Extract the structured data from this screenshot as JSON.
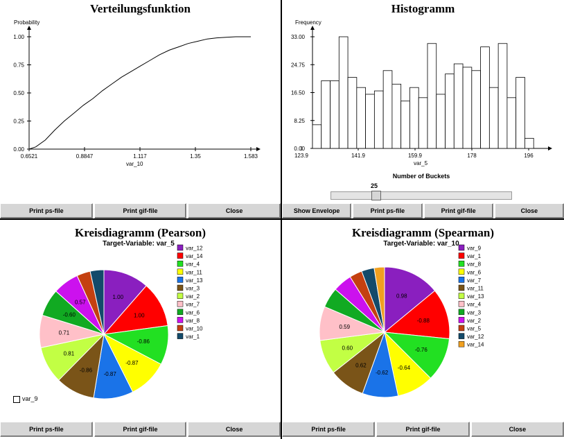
{
  "cdf_panel": {
    "title": "Verteilungsfunktion",
    "buttons": [
      "Print ps-file",
      "Print gif-file",
      "Close"
    ]
  },
  "hist_panel": {
    "title": "Histogramm",
    "slider_label": "Number of Buckets",
    "slider_value": "25",
    "buttons": [
      "Show Envelope",
      "Print ps-file",
      "Print gif-file",
      "Close"
    ]
  },
  "pearson_panel": {
    "title": "Kreisdiagramm (Pearson)",
    "subtitle": "Target-Variable: var_5",
    "checkbox_label": "var_9",
    "buttons": [
      "Print ps-file",
      "Print gif-file",
      "Close"
    ]
  },
  "spearman_panel": {
    "title": "Kreisdiagramm (Spearman)",
    "subtitle": "Target-Variable: var_10",
    "buttons": [
      "Print ps-file",
      "Print gif-file",
      "Close"
    ]
  },
  "chart_data": [
    {
      "type": "line",
      "ylabel": "Probability",
      "xlabel": "var_10",
      "xticks": [
        "0.6521",
        "0.8847",
        "1.117",
        "1.35",
        "1.583"
      ],
      "yticks": [
        "0.00",
        "0.25",
        "0.50",
        "0.75",
        "1.00"
      ],
      "xlim": [
        0.6521,
        1.583
      ],
      "ylim": [
        0,
        1
      ],
      "x": [
        0.652,
        0.68,
        0.72,
        0.76,
        0.8,
        0.84,
        0.88,
        0.92,
        0.96,
        1.0,
        1.04,
        1.08,
        1.12,
        1.16,
        1.2,
        1.24,
        1.28,
        1.32,
        1.36,
        1.4,
        1.44,
        1.48,
        1.52,
        1.583
      ],
      "y": [
        0.0,
        0.02,
        0.08,
        0.17,
        0.25,
        0.32,
        0.39,
        0.45,
        0.52,
        0.58,
        0.64,
        0.69,
        0.74,
        0.79,
        0.84,
        0.88,
        0.91,
        0.94,
        0.96,
        0.98,
        0.99,
        0.995,
        1.0,
        1.0
      ]
    },
    {
      "type": "bar",
      "ylabel": "Frequency",
      "xlabel": "var_5",
      "xticks": [
        "123.9",
        "141.9",
        "159.9",
        "178",
        "196"
      ],
      "yticks": [
        "0.00",
        "8.25",
        "16.50",
        "24.75",
        "33.00"
      ],
      "xlim": [
        123.9,
        196
      ],
      "ylim": [
        0,
        33
      ],
      "values": [
        7,
        20,
        20,
        33,
        21,
        18,
        16,
        17,
        23,
        19,
        14,
        18,
        15,
        31,
        16,
        22,
        25,
        24,
        23,
        30,
        18,
        31,
        15,
        21,
        3
      ]
    },
    {
      "type": "pie",
      "title": "Kreisdiagramm (Pearson)",
      "subtitle": "Target-Variable: var_5",
      "labels": [
        "var_12",
        "var_14",
        "var_4",
        "var_11",
        "var_13",
        "var_3",
        "var_2",
        "var_7",
        "var_6",
        "var_8",
        "var_10",
        "var_1"
      ],
      "values": [
        1.0,
        1.0,
        -0.86,
        -0.87,
        -0.87,
        -0.86,
        0.81,
        0.71,
        -0.6,
        0.57,
        0.3,
        0.3
      ],
      "display_values": [
        "1.00",
        "1.00",
        "-0.86",
        "-0.87",
        "-0.87",
        "-0.86",
        "0.81",
        "0.71",
        "-0.60",
        "0.57",
        "",
        ""
      ],
      "colors": [
        "#8a1fbf",
        "#ff0000",
        "#22e022",
        "#ffff00",
        "#1a73e8",
        "#7a5418",
        "#c2ff44",
        "#ffc0c8",
        "#11aa22",
        "#cc11ee",
        "#c44010",
        "#134a6a"
      ]
    },
    {
      "type": "pie",
      "title": "Kreisdiagramm (Spearman)",
      "subtitle": "Target-Variable: var_10",
      "labels": [
        "var_9",
        "var_1",
        "var_8",
        "var_6",
        "var_7",
        "var_11",
        "var_13",
        "var_4",
        "var_3",
        "var_2",
        "var_5",
        "var_12",
        "var_14"
      ],
      "values": [
        0.98,
        -0.88,
        -0.76,
        -0.64,
        -0.62,
        0.62,
        0.6,
        0.59,
        0.35,
        0.33,
        0.22,
        0.22,
        0.18
      ],
      "display_values": [
        "0.98",
        "-0.88",
        "-0.76",
        "-0.64",
        "-0.62",
        "0.62",
        "0.60",
        "0.59",
        "",
        "",
        "",
        "",
        ""
      ],
      "colors": [
        "#8a1fbf",
        "#ff0000",
        "#22e022",
        "#ffff00",
        "#1a73e8",
        "#7a5418",
        "#c2ff44",
        "#ffc0c8",
        "#11aa22",
        "#cc11ee",
        "#c44010",
        "#134a6a",
        "#f0a020"
      ]
    }
  ]
}
